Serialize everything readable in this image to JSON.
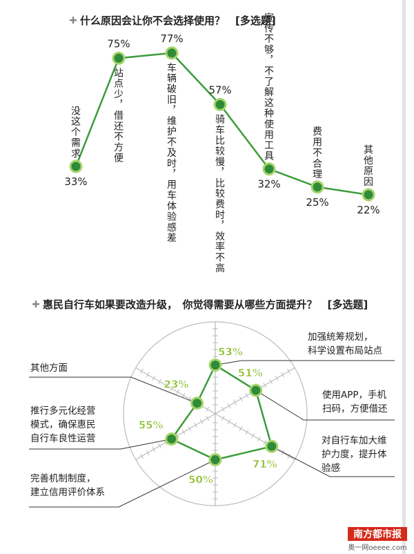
{
  "chart_data": [
    {
      "type": "line",
      "title": "什么原因会让你不会选择使用？　[多选题]",
      "categories": [
        "没这个需求",
        "站点少，借还不方便",
        "车辆破旧，维护不及时，用车体验感差",
        "骑车比较慢，比较费时，效率不高",
        "宣传不够，不了解这种使用工具",
        "费用不合理",
        "其他原因"
      ],
      "values": [
        33,
        75,
        77,
        57,
        32,
        25,
        22
      ],
      "value_labels": [
        "33%",
        "75%",
        "77%",
        "57%",
        "32%",
        "25%",
        "22%"
      ],
      "ylim": [
        0,
        100
      ]
    },
    {
      "type": "radar",
      "title": "惠民自行车如果要改造升级，　你觉得需要从哪些方面提升？　[多选题]",
      "categories": [
        "加强统筹规划，科学设置布局站点",
        "使用APP，手机扫码，方便借还",
        "对自行车加大维护力度，提升体验感",
        "完善机制制度，建立信用评价体系",
        "推行多元化经营模式，确保惠民自行车良性运营",
        "其他方面"
      ],
      "values": [
        53,
        51,
        71,
        50,
        55,
        23
      ],
      "value_labels": [
        "53%",
        "51%",
        "71%",
        "50%",
        "55%",
        "23%"
      ],
      "range": [
        0,
        100
      ]
    }
  ],
  "watermark": {
    "brand": "南方都市报",
    "site": "奥一网oeeee.com"
  },
  "colors": {
    "line": "#3a9c3a",
    "marker_fill": "#2e8b3a",
    "marker_ring": "#a6d46a",
    "value_green": "#86bc25",
    "grid": "#bbbbbb",
    "right_rule": "#e3e3e3",
    "watermark_bg": "#d42a1a"
  }
}
